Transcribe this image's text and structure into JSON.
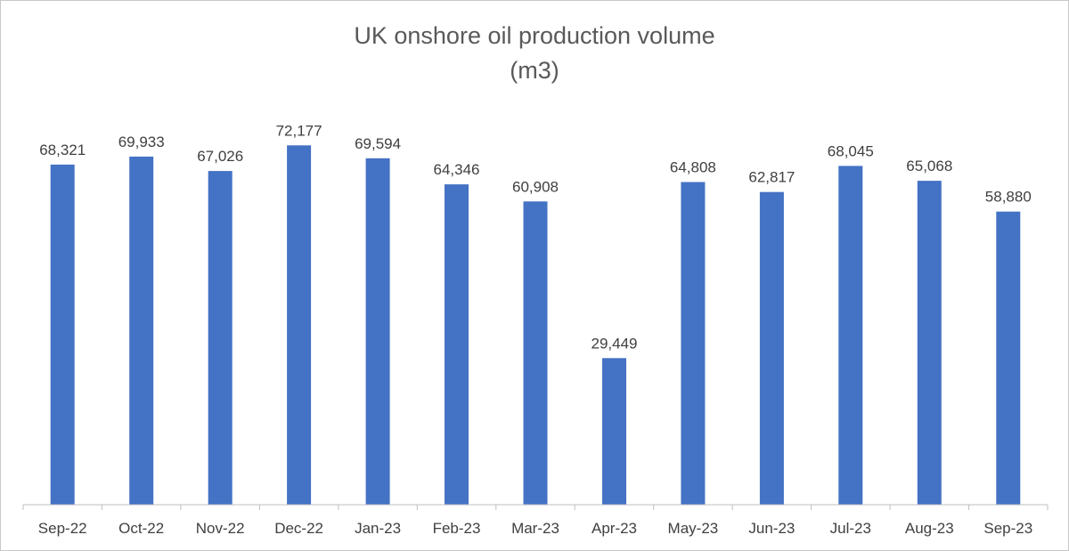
{
  "chart_data": {
    "type": "bar",
    "title": "UK onshore oil production volume",
    "subtitle": "(m3)",
    "xlabel": "",
    "ylabel": "",
    "categories": [
      "Sep-22",
      "Oct-22",
      "Nov-22",
      "Dec-22",
      "Jan-23",
      "Feb-23",
      "Mar-23",
      "Apr-23",
      "May-23",
      "Jun-23",
      "Jul-23",
      "Aug-23",
      "Sep-23"
    ],
    "values": [
      68321,
      69933,
      67026,
      72177,
      69594,
      64346,
      60908,
      29449,
      64808,
      62817,
      68045,
      65068,
      58880
    ],
    "data_labels": [
      "68,321",
      "69,933",
      "67,026",
      "72,177",
      "69,594",
      "64,346",
      "60,908",
      "29,449",
      "64,808",
      "62,817",
      "68,045",
      "65,068",
      "58,880"
    ],
    "ylim": [
      0,
      90000
    ],
    "grid": false,
    "legend": "none",
    "bar_color": "#4472C4",
    "axis_color": "#bfbfbf"
  }
}
